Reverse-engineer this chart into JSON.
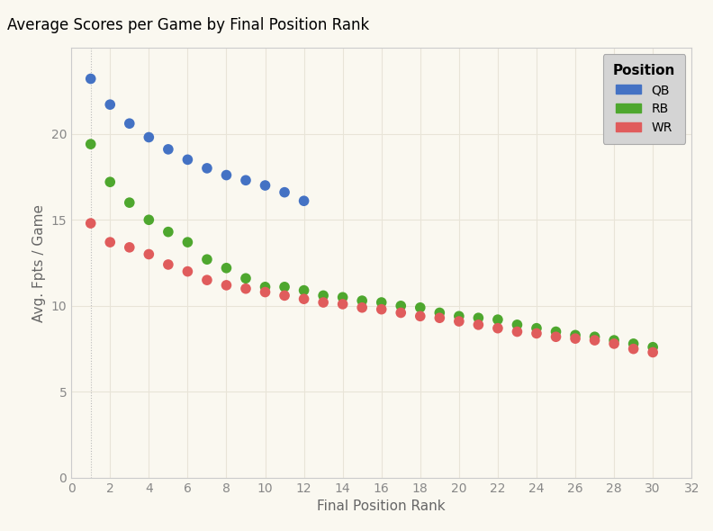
{
  "title": "Average Scores per Game by Final Position Rank",
  "xlabel": "Final Position Rank",
  "ylabel": "Avg. Fpts / Game",
  "background_color": "#faf8f0",
  "plot_bg_color": "#faf8f0",
  "title_bg_color": "#d9e2f0",
  "grid_color": "#e8e4d8",
  "xlim": [
    0,
    32
  ],
  "ylim": [
    0,
    25
  ],
  "xticks": [
    0,
    2,
    4,
    6,
    8,
    10,
    12,
    14,
    16,
    18,
    20,
    22,
    24,
    26,
    28,
    30,
    32
  ],
  "yticks": [
    0,
    5,
    10,
    15,
    20
  ],
  "series": {
    "QB": {
      "color": "#4472c4",
      "x": [
        1,
        2,
        3,
        4,
        5,
        6,
        7,
        8,
        9,
        10,
        11,
        12
      ],
      "y": [
        23.2,
        21.7,
        20.6,
        19.8,
        19.1,
        18.5,
        18.0,
        17.6,
        17.3,
        17.0,
        16.6,
        16.1
      ]
    },
    "RB": {
      "color": "#4ea72e",
      "x": [
        1,
        2,
        3,
        4,
        5,
        6,
        7,
        8,
        9,
        10,
        11,
        12,
        13,
        14,
        15,
        16,
        17,
        18,
        19,
        20,
        21,
        22,
        23,
        24,
        25,
        26,
        27,
        28,
        29,
        30
      ],
      "y": [
        19.4,
        17.2,
        16.0,
        15.0,
        14.3,
        13.7,
        12.7,
        12.2,
        11.6,
        11.1,
        11.1,
        10.9,
        10.6,
        10.5,
        10.3,
        10.2,
        10.0,
        9.9,
        9.6,
        9.4,
        9.3,
        9.2,
        8.9,
        8.7,
        8.5,
        8.3,
        8.2,
        8.0,
        7.8,
        7.6
      ]
    },
    "WR": {
      "color": "#e05c5c",
      "x": [
        1,
        2,
        3,
        4,
        5,
        6,
        7,
        8,
        9,
        10,
        11,
        12,
        13,
        14,
        15,
        16,
        17,
        18,
        19,
        20,
        21,
        22,
        23,
        24,
        25,
        26,
        27,
        28,
        29,
        30
      ],
      "y": [
        14.8,
        13.7,
        13.4,
        13.0,
        12.4,
        12.0,
        11.5,
        11.2,
        11.0,
        10.8,
        10.6,
        10.4,
        10.2,
        10.1,
        9.9,
        9.8,
        9.6,
        9.4,
        9.3,
        9.1,
        8.9,
        8.7,
        8.5,
        8.4,
        8.2,
        8.1,
        8.0,
        7.8,
        7.5,
        7.3
      ]
    }
  },
  "legend_title": "Position",
  "legend_facecolor": "#d4d4d4",
  "marker_size": 70,
  "tick_color": "#888888",
  "label_color": "#666666",
  "spine_color": "#cccccc"
}
